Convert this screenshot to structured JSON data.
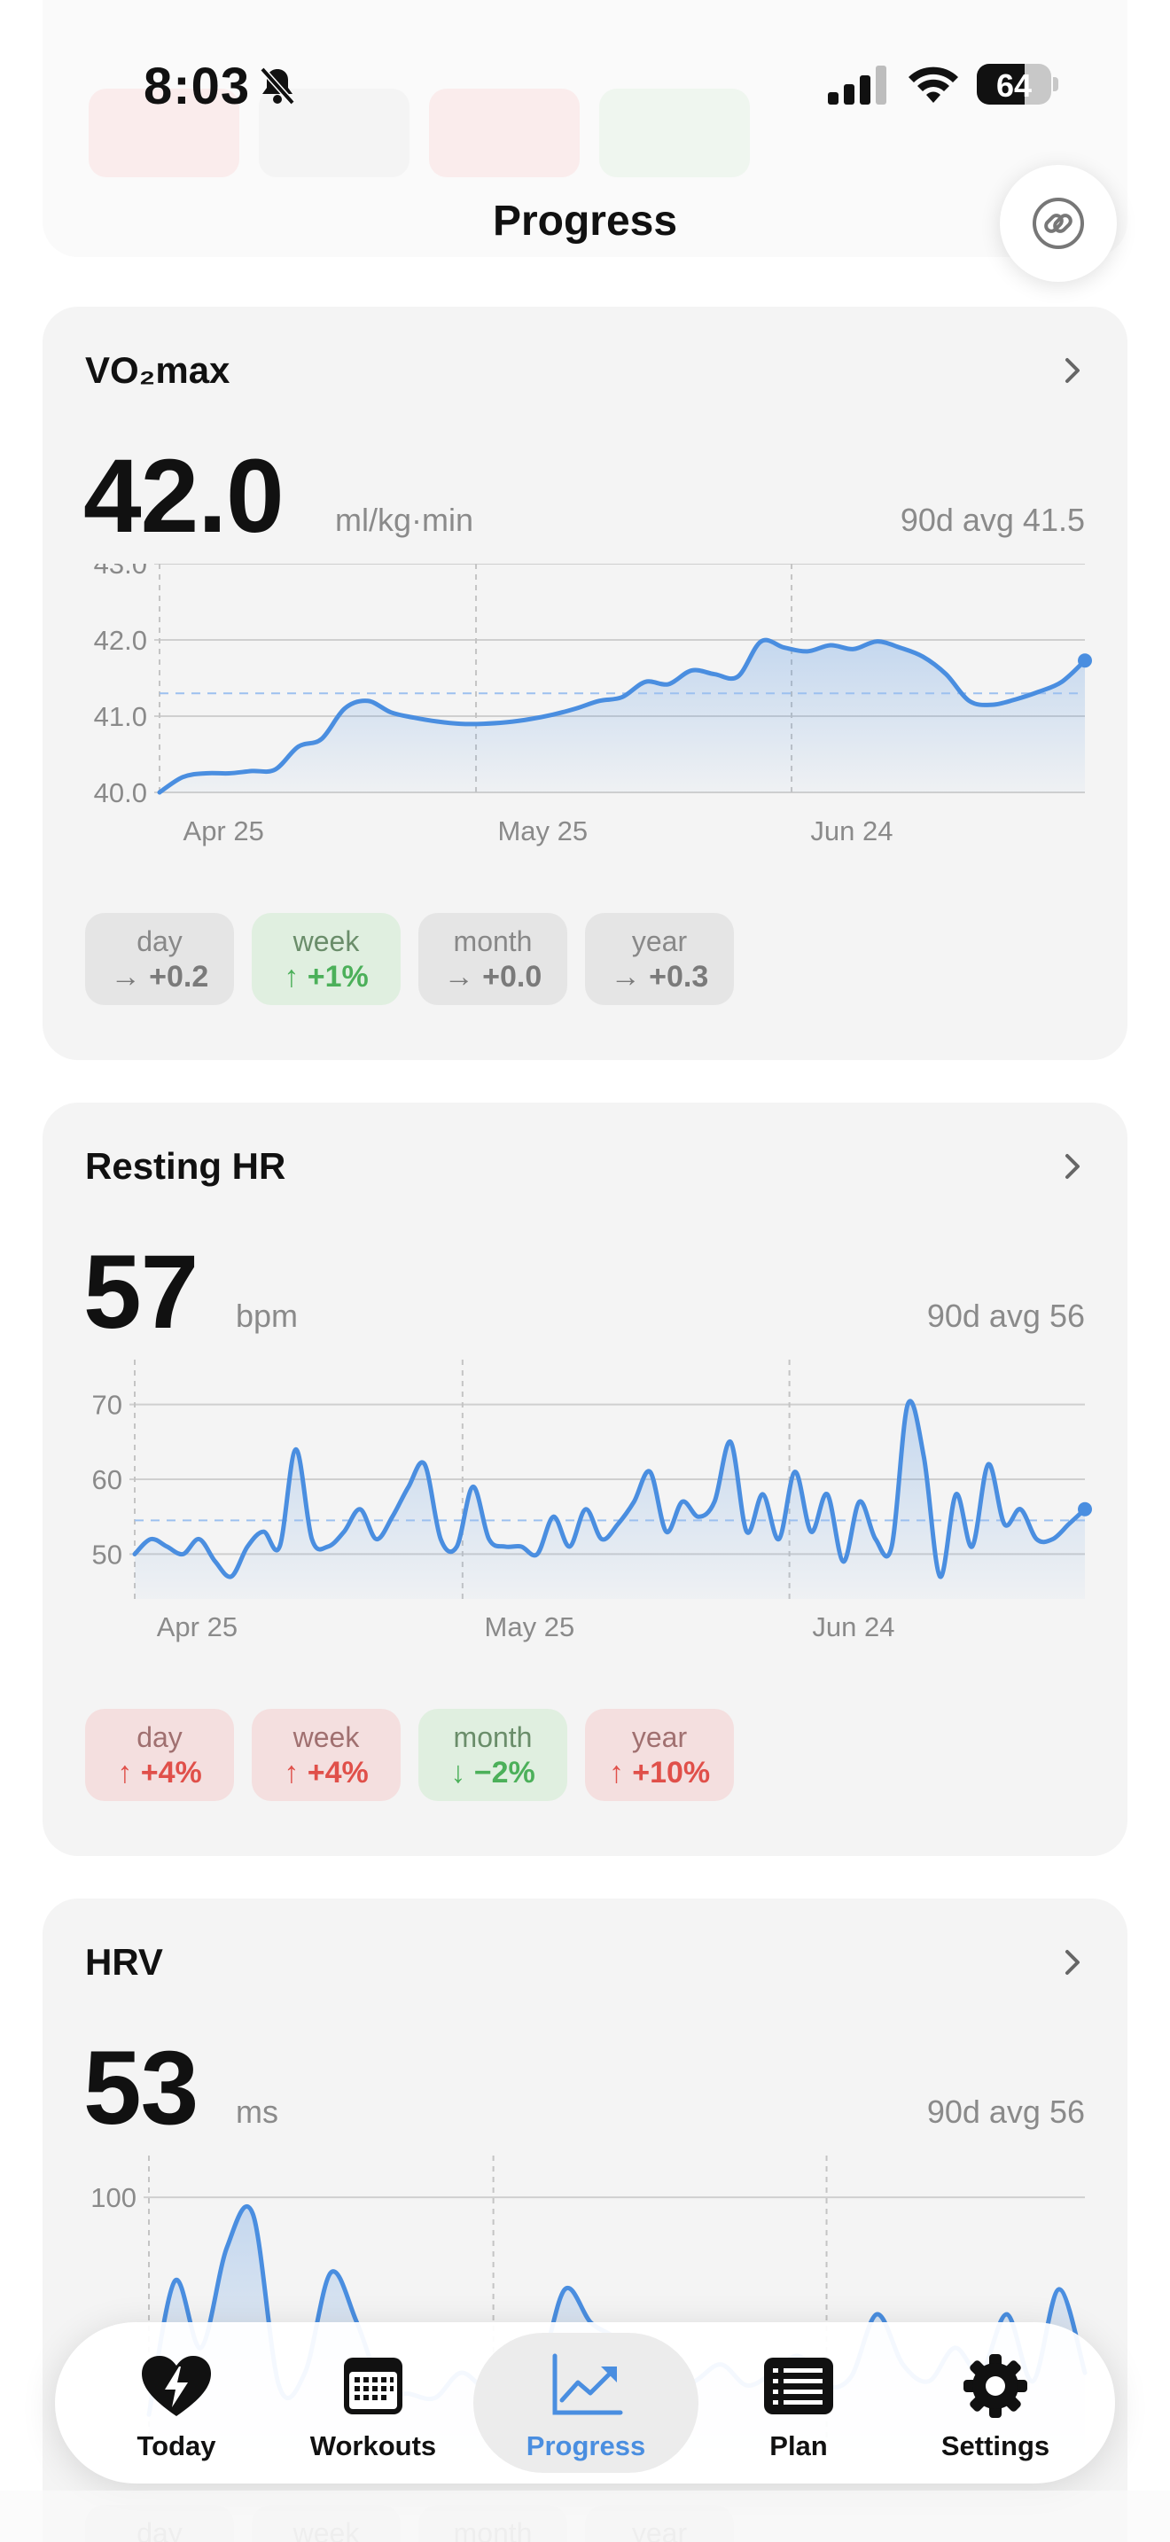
{
  "status_bar": {
    "time": "8:03",
    "battery": "64"
  },
  "header": {
    "title": "Progress",
    "link_icon": "link-icon"
  },
  "colors": {
    "accent": "#4a8ee0",
    "up_bad": "#e0504a",
    "good": "#4cb05a",
    "neutral": "#7a7a7a"
  },
  "cards": [
    {
      "title": "VO₂max",
      "value": "42.0",
      "unit": "ml/kg·min",
      "avg": "90d avg 41.5",
      "chart_data": {
        "type": "area",
        "ylim": [
          40.0,
          43.0
        ],
        "y_ticks": [
          "43.0",
          "42.0",
          "41.0",
          "40.0"
        ],
        "x_ticks": [
          "Apr 25",
          "May 25",
          "Jun 24"
        ],
        "average_line": 41.3,
        "series": [
          {
            "values": [
              40.0,
              40.2,
              40.25,
              40.25,
              40.28,
              40.3,
              40.6,
              40.7,
              41.1,
              41.2,
              41.05,
              40.98,
              40.93,
              40.9,
              40.9,
              40.92,
              40.96,
              41.02,
              41.1,
              41.2,
              41.25,
              41.45,
              41.42,
              41.6,
              41.55,
              41.52,
              41.98,
              41.9,
              41.85,
              41.93,
              41.88,
              41.98,
              41.9,
              41.78,
              41.55,
              41.2,
              41.15,
              41.22,
              41.32,
              41.45,
              41.73
            ]
          }
        ]
      },
      "changes": [
        {
          "period": "day",
          "value": "→ +0.2",
          "tone": "gray"
        },
        {
          "period": "week",
          "value": "↑ +1%",
          "tone": "green"
        },
        {
          "period": "month",
          "value": "→ +0.0",
          "tone": "gray"
        },
        {
          "period": "year",
          "value": "→ +0.3",
          "tone": "gray"
        }
      ]
    },
    {
      "title": "Resting HR",
      "value": "57",
      "unit": "bpm",
      "avg": "90d avg 56",
      "chart_data": {
        "type": "area",
        "ylim": [
          44,
          76
        ],
        "y_ticks": [
          "70",
          "60",
          "50"
        ],
        "x_ticks": [
          "Apr 25",
          "May 25",
          "Jun 24"
        ],
        "average_line": 54.5,
        "series": [
          {
            "values": [
              50,
              52,
              51,
              50,
              52,
              49,
              47,
              51,
              53,
              51,
              64,
              52,
              51,
              53,
              56,
              52,
              55,
              59,
              62,
              52,
              51,
              59,
              52,
              51,
              51,
              50,
              55,
              51,
              56,
              52,
              54,
              57,
              61,
              53,
              57,
              55,
              57,
              65,
              53,
              58,
              52,
              61,
              53,
              58,
              49,
              57,
              52,
              51,
              70,
              63,
              47,
              58,
              51,
              62,
              54,
              56,
              52,
              52,
              54,
              56
            ]
          }
        ]
      },
      "changes": [
        {
          "period": "day",
          "value": "↑ +4%",
          "tone": "red"
        },
        {
          "period": "week",
          "value": "↑ +4%",
          "tone": "red"
        },
        {
          "period": "month",
          "value": "↓ −2%",
          "tone": "green"
        },
        {
          "period": "year",
          "value": "↑ +10%",
          "tone": "red"
        }
      ]
    },
    {
      "title": "HRV",
      "value": "53",
      "unit": "ms",
      "avg": "90d avg 56",
      "chart_data": {
        "type": "area",
        "ylim": [
          40,
          110
        ],
        "y_ticks": [
          "100"
        ],
        "x_ticks": [],
        "series": [
          {
            "values": [
              48,
              80,
              64,
              88,
              96,
              55,
              58,
              82,
              70,
              54,
              53,
              52,
              58,
              54,
              56,
              58,
              78,
              70,
              66,
              58,
              54,
              56,
              60,
              55,
              58,
              62,
              55,
              57,
              72,
              60,
              56,
              64,
              58,
              72,
              56,
              78,
              58
            ]
          }
        ]
      },
      "changes": [
        {
          "period": "day",
          "value": "",
          "tone": "gray"
        },
        {
          "period": "week",
          "value": "",
          "tone": "gray"
        },
        {
          "period": "month",
          "value": "",
          "tone": "gray"
        },
        {
          "period": "year",
          "value": "",
          "tone": "gray"
        }
      ]
    }
  ],
  "tabs": [
    {
      "label": "Today",
      "icon": "heart-bolt-icon",
      "active": false
    },
    {
      "label": "Workouts",
      "icon": "calendar-icon",
      "active": false
    },
    {
      "label": "Progress",
      "icon": "chart-trend-icon",
      "active": true
    },
    {
      "label": "Plan",
      "icon": "list-icon",
      "active": false
    },
    {
      "label": "Settings",
      "icon": "gear-icon",
      "active": false
    }
  ]
}
